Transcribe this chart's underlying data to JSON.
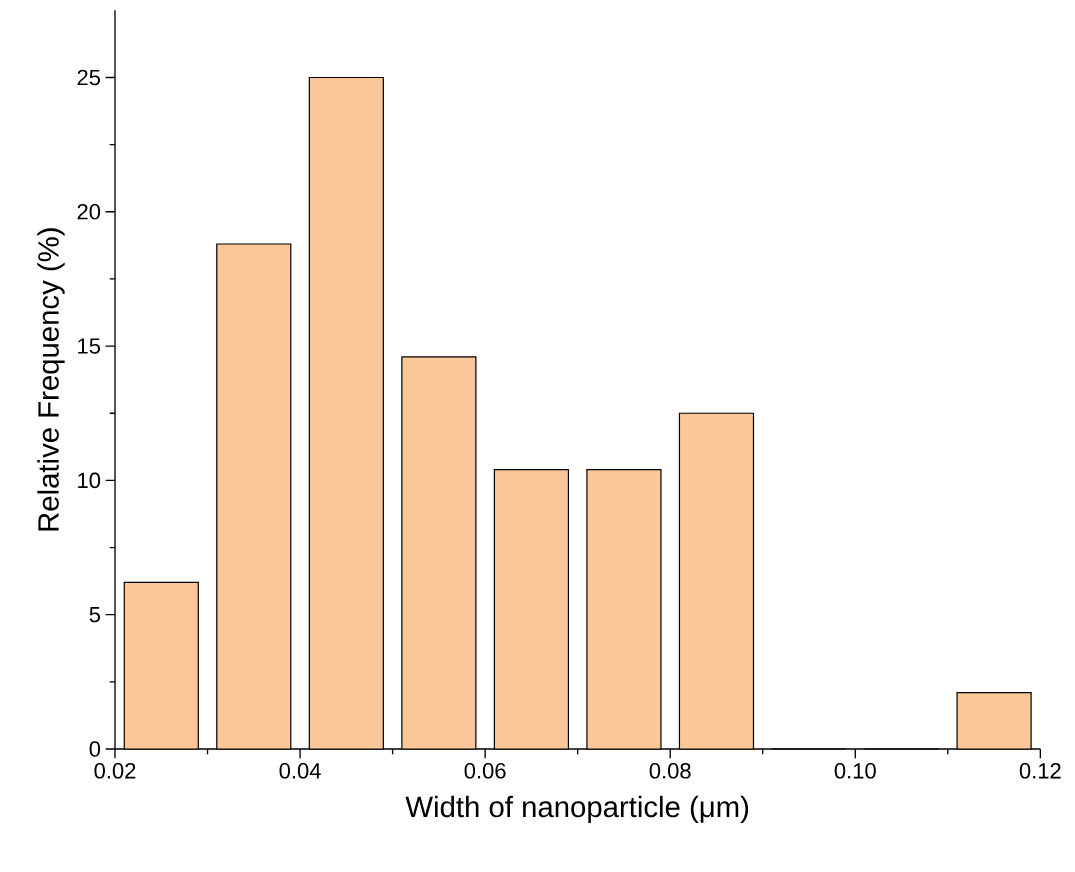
{
  "chart_data": {
    "type": "histogram",
    "xlabel": "Width of nanoparticle (μm)",
    "ylabel": "Relative Frequency (%)",
    "bins": [
      0.02,
      0.03,
      0.04,
      0.05,
      0.06,
      0.07,
      0.08,
      0.09,
      0.1,
      0.11,
      0.12
    ],
    "values": [
      6.2,
      18.8,
      25,
      14.6,
      10.4,
      10.4,
      12.5,
      0,
      0,
      2.1
    ],
    "color": "#fac898",
    "xlim": [
      0.02,
      0.12
    ],
    "ylim": [
      0,
      27.5
    ],
    "xticks": [
      {
        "value": 0.02,
        "label": "0.02"
      },
      {
        "value": 0.04,
        "label": "0.04"
      },
      {
        "value": 0.06,
        "label": "0.06"
      },
      {
        "value": 0.08,
        "label": "0.08"
      },
      {
        "value": 0.1,
        "label": "0.10"
      },
      {
        "value": 0.12,
        "label": "0.12"
      }
    ],
    "yticks": [
      0,
      5,
      10,
      15,
      20,
      25
    ],
    "grid": false
  }
}
